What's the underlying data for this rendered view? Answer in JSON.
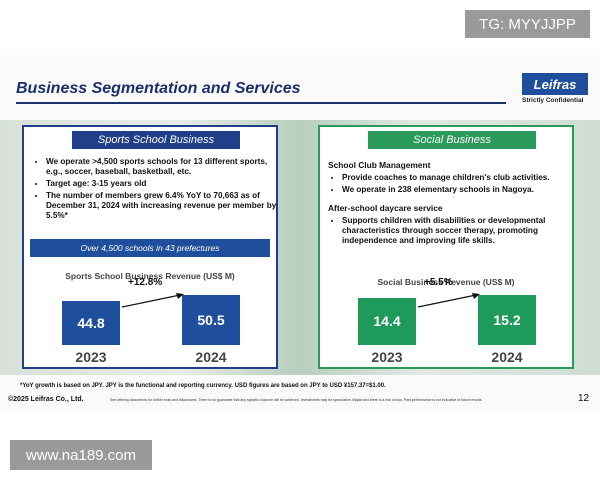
{
  "watermark_top": "TG: MYYJJPP",
  "watermark_bottom": "www.na189.com",
  "header": {
    "title": "Business Segmentation and Services",
    "logo": "Leifras",
    "confidential": "Strictly Confidential"
  },
  "panels": [
    {
      "title": "Sports School Business",
      "bullets": [
        "We operate >4,500 sports schools for 13 different sports, e.g., soccer, baseball, basketball, etc.",
        "Target age: 3-15 years old",
        "The number of members grew 6.4% YoY to 70,663 as of December 31, 2024 with increasing revenue per member by 5.5%*"
      ],
      "banner": "Over 4,500 schools in 43 prefectures",
      "chart": {
        "type": "bar",
        "title": "Sports School Business Revenue (US$ M)",
        "categories": [
          "2023",
          "2024"
        ],
        "values": [
          44.8,
          50.5
        ],
        "color": "#1f4e9c",
        "change": "+12.8%"
      }
    },
    {
      "title": "Social Business",
      "sections": [
        {
          "heading": "School Club Management",
          "bullets": [
            "Provide coaches to manage children's club activities.",
            "We operate in 238 elementary schools in Nagoya."
          ]
        },
        {
          "heading": "After-school daycare service",
          "bullets": [
            "Supports children with disabilities or developmental characteristics through soccer therapy, promoting independence and improving life skills."
          ]
        }
      ],
      "chart": {
        "type": "bar",
        "title": "Social Business Revenue (US$ M)",
        "categories": [
          "2023",
          "2024"
        ],
        "values": [
          14.4,
          15.2
        ],
        "color": "#1e9a5a",
        "change": "+5.5%"
      }
    }
  ],
  "footer": {
    "note": "*YoY growth is based on JPY. JPY is the functional and reporting currency. USD figures are based on JPY to USD ¥157.37=$1.00.",
    "copyright": "©2025 Leifras Co., Ltd.",
    "disclaimer": "See offering documents for further risks and disclosures. There is no guarantee that any specific outcome will be achieved. Investments may be speculative, illiquid and there is a risk of loss. Past performance is not indicative of future results.",
    "page": "12"
  }
}
